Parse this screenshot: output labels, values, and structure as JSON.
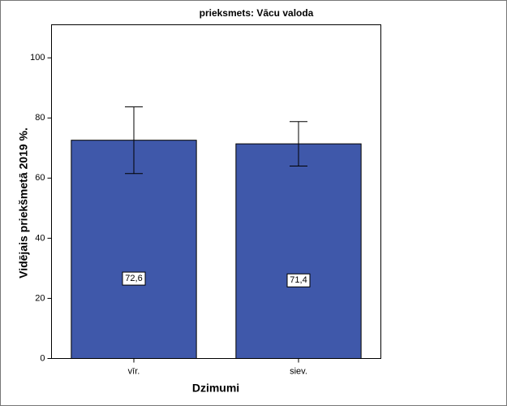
{
  "chart_data": {
    "type": "bar",
    "title": "prieksmets: Vācu valoda",
    "x_label": "Dzimumi",
    "y_label": "Vidējais priekšmetā 2019 %.",
    "categories": [
      "vīr.",
      "siev."
    ],
    "values": [
      72.6,
      71.4
    ],
    "value_labels": [
      "72,6",
      "71,4"
    ],
    "errors": [
      11.1,
      7.4
    ],
    "color": "#3f58aa",
    "ylim": [
      0,
      111
    ],
    "yticks": [
      0,
      20,
      40,
      60,
      80,
      100
    ]
  }
}
